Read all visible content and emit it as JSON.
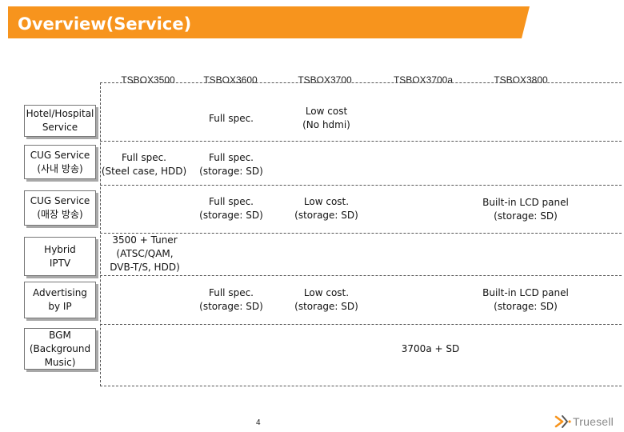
{
  "title": "Overview(Service)",
  "columns": [
    "TSBOX3500",
    "TSBOX3600",
    "TSBOX3700",
    "TSBOX3700a",
    "TSBOX3800"
  ],
  "rows": [
    {
      "label": "Hotel/Hospital\nService"
    },
    {
      "label": "CUG Service\n(사내 방송)"
    },
    {
      "label": "CUG Service\n(매장 방송)"
    },
    {
      "label": "Hybrid\nIPTV"
    },
    {
      "label": "Advertising\nby IP"
    },
    {
      "label": "BGM\n(Background\nMusic)"
    }
  ],
  "cells": {
    "hotel_3600": "Full spec.",
    "hotel_3700": "Low cost\n(No hdmi)",
    "cug1_3500": "Full spec.\n(Steel case, HDD)",
    "cug1_3600": "Full spec.\n(storage: SD)",
    "cug2_3600": "Full spec.\n(storage: SD)",
    "cug2_3700": "Low cost.\n(storage: SD)",
    "cug2_3800": "Built-in LCD panel\n(storage: SD)",
    "iptv_3500": "3500 + Tuner\n(ATSC/QAM,\nDVB-T/S, HDD)",
    "adv_3600": "Full spec.\n(storage: SD)",
    "adv_3700": "Low cost.\n(storage: SD)",
    "adv_3800": "Built-in LCD panel\n(storage: SD)",
    "bgm_3700a": "3700a + SD"
  },
  "page_number": "4",
  "logo_text": "Truesell",
  "colors": {
    "header": "#f7941d",
    "logo_mark": "#f7941d"
  }
}
